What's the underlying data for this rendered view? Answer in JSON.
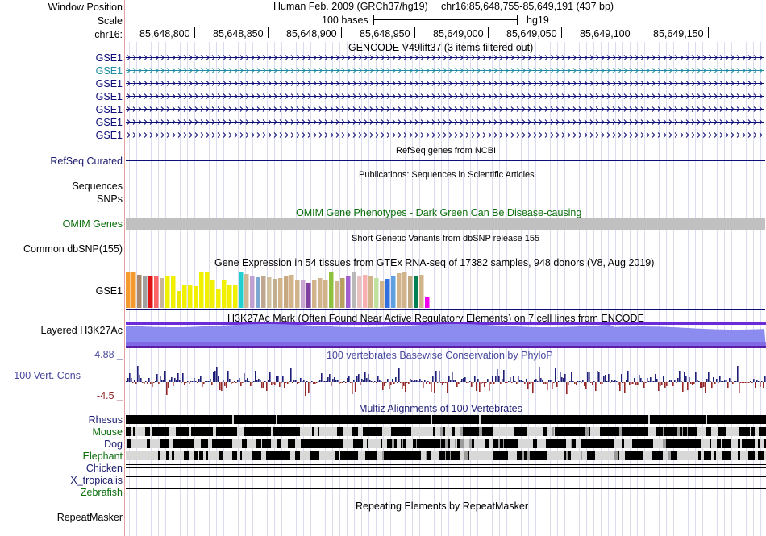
{
  "header": {
    "window_position_label": "Window Position",
    "scale_label": "Scale",
    "chrom_label": "chr16:",
    "assembly": "Human Feb. 2009 (GRCh37/hg19)",
    "position": "chr16:85,648,755-85,649,191 (437 bp)",
    "scale_text": "100 bases",
    "scale_db": "hg19",
    "ruler_ticks": [
      "85,648,800",
      "85,648,850",
      "85,648,900",
      "85,648,950",
      "85,649,000",
      "85,649,050",
      "85,649,100",
      "85,649,150"
    ]
  },
  "tracks": {
    "gencode": {
      "title": "GENCODE V49lift37 (3 items filtered out)",
      "items": [
        "GSE1",
        "GSE1",
        "GSE1",
        "GSE1",
        "GSE1",
        "GSE1",
        "GSE1"
      ],
      "highlight_index": 1
    },
    "refseq": {
      "title": "RefSeq genes from NCBI",
      "label": "RefSeq Curated"
    },
    "publications": {
      "title": "Publications: Sequences in Scientific Articles",
      "label": "Sequences"
    },
    "snps_label": "SNPs",
    "omim": {
      "title": "OMIM Gene Phenotypes - Dark Green Can Be Disease-causing",
      "label": "OMIM Genes"
    },
    "dbsnp": {
      "title": "Short Genetic Variants from dbSNP release 155",
      "label": "Common dbSNP(155)"
    },
    "gtex": {
      "title": "Gene Expression in 54 tissues from GTEx RNA-seq of 17382 samples, 948 donors (V8, Aug 2019)",
      "label": "GSE1",
      "bar_levels": [
        0.95,
        0.95,
        0.9,
        0.85,
        0.88,
        0.88,
        0.8,
        0.88,
        0.85,
        0.45,
        0.6,
        0.6,
        0.58,
        0.98,
        0.98,
        0.75,
        0.5,
        0.75,
        0.62,
        0.62,
        0.98,
        0.92,
        0.88,
        0.82,
        0.87,
        0.82,
        0.78,
        0.8,
        0.86,
        0.9,
        0.75,
        0.75,
        0.68,
        0.75,
        0.8,
        0.75,
        0.95,
        0.72,
        0.8,
        0.88,
        0.98,
        0.86,
        0.9,
        0.86,
        0.8,
        0.72,
        0.78,
        0.84,
        0.94,
        0.96,
        0.86,
        0.88,
        0.9,
        0.28
      ],
      "bar_colors": [
        "#f59a2e",
        "#f59a2e",
        "#a8886a",
        "#a0a0a0",
        "#e01414",
        "#ff6464",
        "#c8b496",
        "#f0f000",
        "#f0f000",
        "#e8e800",
        "#f0f000",
        "#f0f000",
        "#f0f000",
        "#f0f000",
        "#f0f000",
        "#f0f000",
        "#f0f000",
        "#f0f000",
        "#f0f000",
        "#f0f000",
        "#20d0d0",
        "#d0b896",
        "#c0a0d0",
        "#7fa8d0",
        "#c0a890",
        "#d0c0a0",
        "#c0b090",
        "#d2b48c",
        "#c8a880",
        "#d2b48c",
        "#d2b48c",
        "#c8a8d0",
        "#8040a0",
        "#d2b48c",
        "#d2b48c",
        "#d2b48c",
        "#90c040",
        "#d2b48c",
        "#b8a060",
        "#a060d0",
        "#b8b8b8",
        "#e8c0c0",
        "#f8b0b0",
        "#d2b48c",
        "#c0e0a0",
        "#d2b48c",
        "#3070e0",
        "#60a0e0",
        "#d2b48c",
        "#d2b48c",
        "#c0a880",
        "#008050",
        "#d2b48c",
        "#f000f0"
      ]
    },
    "h3k27ac": {
      "title": "H3K27Ac Mark (Often Found Near Active Regulatory Elements) on 7 cell lines from ENCODE",
      "label": "Layered H3K27Ac"
    },
    "phylop": {
      "title": "100 vertebrates Basewise Conservation by PhyloP",
      "label": "100 Vert. Cons",
      "max": "4.88 _",
      "min": "-4.5 _"
    },
    "multiz": {
      "title": "Multiz Alignments of 100 Vertebrates",
      "species": [
        "Rhesus",
        "Mouse",
        "Dog",
        "Elephant",
        "Chicken",
        "X_tropicalis",
        "Zebrafish"
      ]
    },
    "repeatmasker": {
      "title": "Repeating Elements by RepeatMasker",
      "label": "RepeatMasker"
    }
  },
  "colors": {
    "grid_line": "#dcdcf0",
    "divider": "#e4a0a0",
    "gencode_blue": "#0c0c78",
    "gencode_highlight": "#1e8ca0",
    "label_blue": "#1a1a6e",
    "omim_green": "#0a6e0a",
    "omim_bar": "#c0c0c0",
    "h3k27ac_dark": "#6b2bd6",
    "h3k27ac_light": "#8c8cf0",
    "phylop_blue": "#1f1f78",
    "phylop_red": "#96282a",
    "phylop_title": "#46469e",
    "phylop_max_color": "#4c4ca0",
    "phylop_min_color": "#8e2020",
    "black": "#000000"
  }
}
